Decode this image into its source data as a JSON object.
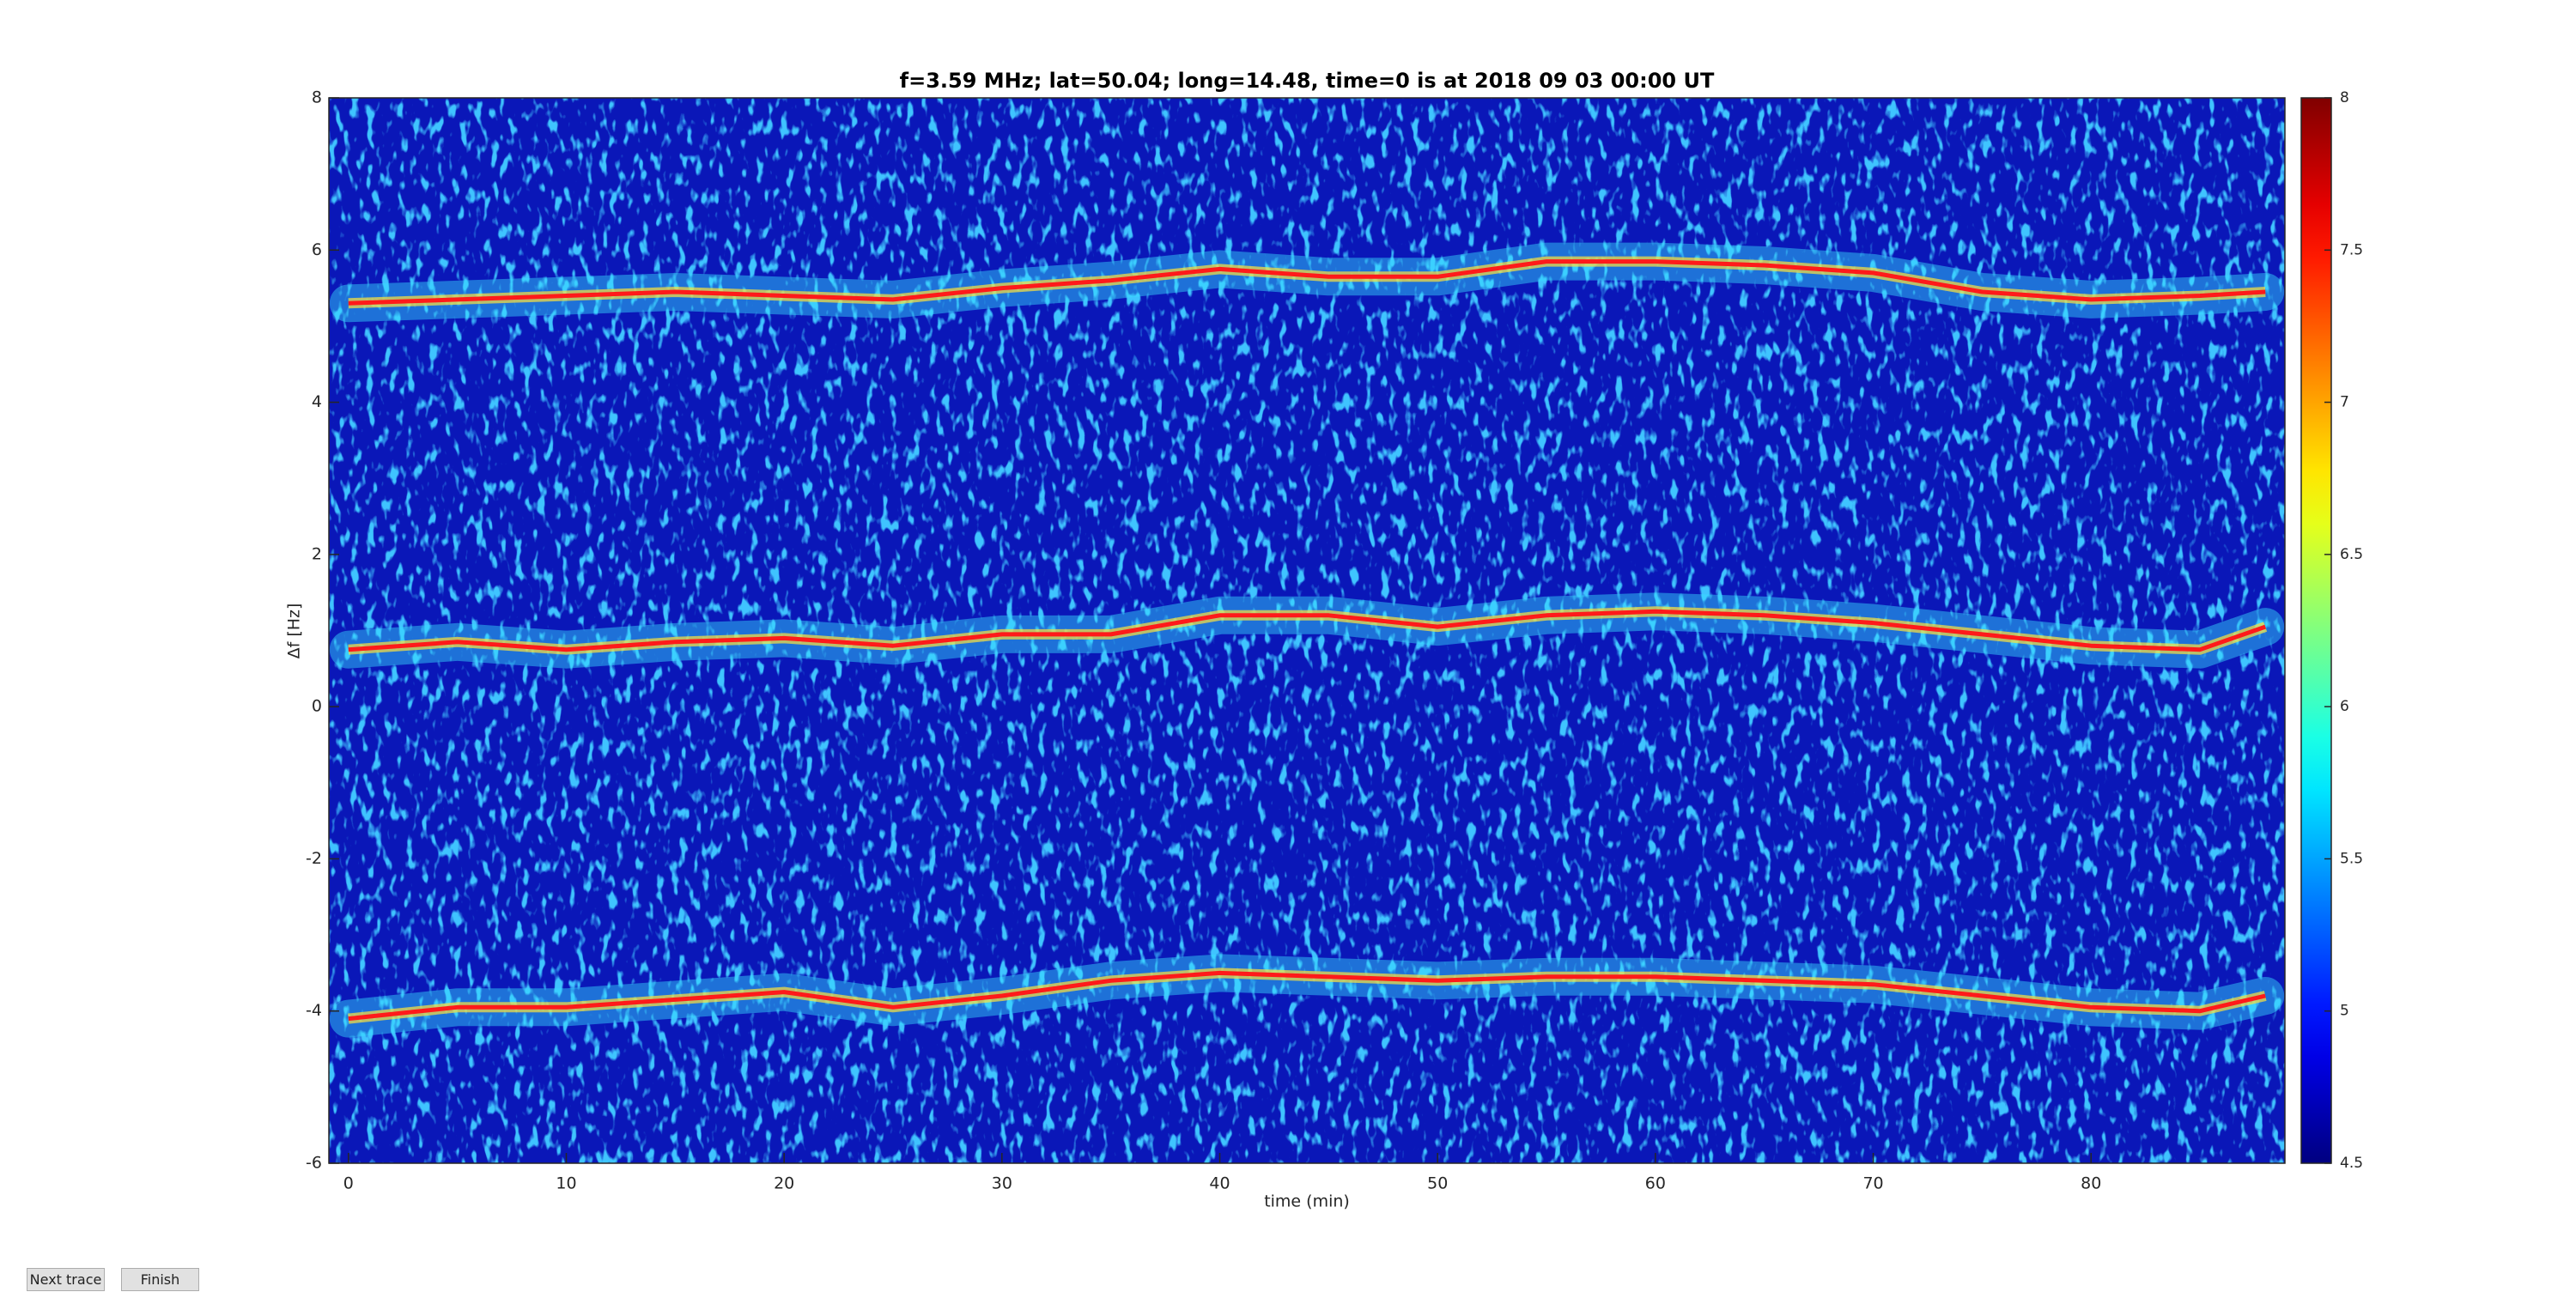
{
  "chart_data": {
    "type": "line",
    "title": "f=3.59 MHz;  lat=50.04; long=14.48, time=0 is at 2018 09 03 00:00 UT",
    "x_label": "time (min)",
    "y_label": "Δf [Hz]",
    "x": [
      0,
      5,
      10,
      15,
      20,
      25,
      30,
      35,
      40,
      45,
      50,
      55,
      60,
      65,
      70,
      75,
      80,
      85,
      88
    ],
    "series": [
      {
        "color": "#ff1a1a",
        "values": [
          5.3,
          5.35,
          5.4,
          5.45,
          5.4,
          5.35,
          5.5,
          5.6,
          5.75,
          5.65,
          5.65,
          5.85,
          5.85,
          5.8,
          5.7,
          5.45,
          5.35,
          5.4,
          5.45
        ]
      },
      {
        "color": "#ff1a1a",
        "values": [
          0.75,
          0.85,
          0.75,
          0.85,
          0.9,
          0.8,
          0.95,
          0.95,
          1.2,
          1.2,
          1.05,
          1.2,
          1.25,
          1.2,
          1.1,
          0.95,
          0.8,
          0.75,
          1.05
        ]
      },
      {
        "color": "#ff1a1a",
        "values": [
          -4.1,
          -3.95,
          -3.95,
          -3.85,
          -3.75,
          -3.95,
          -3.8,
          -3.6,
          -3.5,
          -3.55,
          -3.6,
          -3.55,
          -3.55,
          -3.6,
          -3.65,
          -3.8,
          -3.95,
          -4.0,
          -3.8
        ]
      }
    ],
    "xlim": [
      -0.9,
      88.9
    ],
    "xticks": [
      0,
      10,
      20,
      30,
      40,
      50,
      60,
      70,
      80
    ],
    "ylim": [
      -6,
      8
    ],
    "yticks": [
      -6,
      -4,
      -2,
      0,
      2,
      4,
      6,
      8
    ],
    "background": "#0a17b8",
    "colorbar": {
      "colormap": "jet",
      "clim": [
        4.5,
        8
      ],
      "ticks": [
        4.5,
        5,
        5.5,
        6,
        6.5,
        7,
        7.5,
        8
      ]
    }
  },
  "buttons": [
    "Next trace",
    "Finish"
  ]
}
